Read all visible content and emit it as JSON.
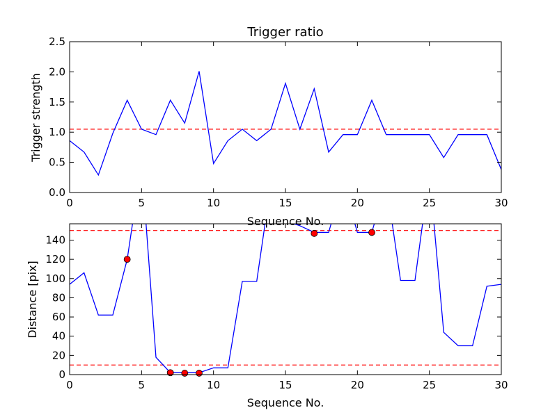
{
  "chart_data": [
    {
      "type": "line",
      "title": "Trigger ratio",
      "xlabel": "Sequence No.",
      "ylabel": "Trigger strength",
      "xlim": [
        0,
        30
      ],
      "ylim": [
        0,
        2.5
      ],
      "xticks": [
        0,
        5,
        10,
        15,
        20,
        25,
        30
      ],
      "yticks": [
        0.0,
        0.5,
        1.0,
        1.5,
        2.0,
        2.5
      ],
      "ytick_labels": [
        "0.0",
        "0.5",
        "1.0",
        "1.5",
        "2.0",
        "2.5"
      ],
      "grid": false,
      "series": [
        {
          "color": "#0000ff",
          "x": [
            0,
            1,
            2,
            3,
            4,
            5,
            6,
            7,
            8,
            9,
            10,
            11,
            12,
            13,
            14,
            15,
            16,
            17,
            18,
            19,
            20,
            21,
            22,
            23,
            24,
            25,
            26,
            27,
            28,
            29,
            30
          ],
          "values": [
            0.86,
            0.67,
            0.29,
            0.98,
            1.53,
            1.05,
            0.96,
            1.53,
            1.15,
            2.01,
            0.48,
            0.86,
            1.05,
            0.86,
            1.05,
            1.81,
            1.05,
            1.72,
            0.67,
            0.96,
            0.96,
            1.53,
            0.96,
            0.96,
            0.96,
            0.96,
            0.58,
            0.96,
            0.96,
            0.96,
            0.38
          ]
        }
      ],
      "reference_lines": [
        {
          "y": 1.05,
          "color": "#ff0000",
          "style": "dashed"
        }
      ]
    },
    {
      "type": "line",
      "title": "",
      "xlabel": "Sequence No.",
      "ylabel": "Distance [pix]",
      "xlim": [
        0,
        30
      ],
      "ylim": [
        0,
        157
      ],
      "xticks": [
        0,
        5,
        10,
        15,
        20,
        25,
        30
      ],
      "yticks": [
        0,
        20,
        40,
        60,
        80,
        100,
        120,
        140
      ],
      "grid": false,
      "series": [
        {
          "color": "#0000ff",
          "x": [
            0,
            1,
            2,
            3,
            4,
            5,
            6,
            7,
            8,
            9,
            10,
            11,
            12,
            13,
            14,
            15,
            16,
            17,
            18,
            19,
            20,
            21,
            22,
            23,
            24,
            25,
            26,
            27,
            28,
            29,
            30
          ],
          "values": [
            94,
            106,
            62,
            62,
            120,
            220,
            18,
            2,
            2,
            2,
            7,
            7,
            97,
            97,
            200,
            160,
            155,
            148,
            148,
            200,
            148,
            148,
            200,
            98,
            98,
            210,
            44,
            30,
            30,
            92,
            94
          ]
        }
      ],
      "markers": {
        "color": "#ff0000",
        "x": [
          4,
          7,
          8,
          9,
          17,
          21
        ],
        "values": [
          120,
          2,
          1.5,
          1.5,
          147,
          148
        ]
      },
      "reference_lines": [
        {
          "y": 150,
          "color": "#ff0000",
          "style": "dashed"
        },
        {
          "y": 10,
          "color": "#ff0000",
          "style": "dashed"
        }
      ]
    }
  ]
}
